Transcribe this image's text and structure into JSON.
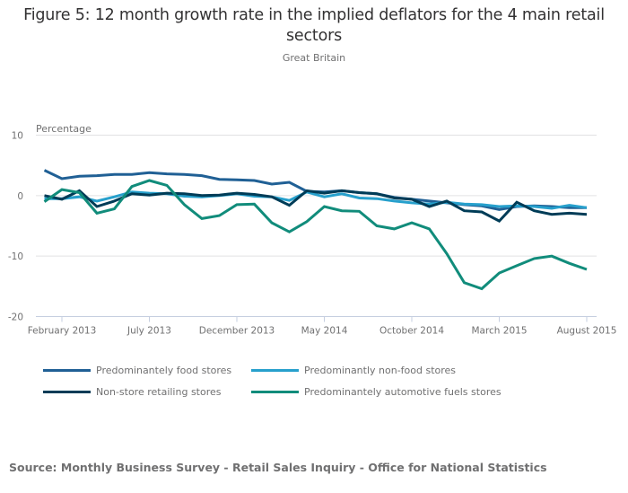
{
  "chart_data": {
    "type": "line",
    "title": "Figure 5: 12 month growth rate in the implied deflators for the 4 main retail sectors",
    "subtitle": "Great Britain",
    "ylabel": "Percentage",
    "xlabel": "",
    "ylim": [
      -20,
      10
    ],
    "yticks": [
      10,
      0,
      -10,
      -20
    ],
    "grid": true,
    "legend_position": "bottom",
    "x": [
      "Jan 2013",
      "Feb 2013",
      "Mar 2013",
      "Apr 2013",
      "May 2013",
      "Jun 2013",
      "Jul 2013",
      "Aug 2013",
      "Sep 2013",
      "Oct 2013",
      "Nov 2013",
      "Dec 2013",
      "Jan 2014",
      "Feb 2014",
      "Mar 2014",
      "Apr 2014",
      "May 2014",
      "Jun 2014",
      "Jul 2014",
      "Aug 2014",
      "Sep 2014",
      "Oct 2014",
      "Nov 2014",
      "Dec 2014",
      "Jan 2015",
      "Feb 2015",
      "Mar 2015",
      "Apr 2015",
      "May 2015",
      "Jun 2015",
      "Jul 2015",
      "Aug 2015"
    ],
    "xtick_labels": [
      {
        "index": 1,
        "label": "February 2013"
      },
      {
        "index": 6,
        "label": "July 2013"
      },
      {
        "index": 11,
        "label": "December 2013"
      },
      {
        "index": 16,
        "label": "May 2014"
      },
      {
        "index": 21,
        "label": "October 2014"
      },
      {
        "index": 26,
        "label": "March 2015"
      },
      {
        "index": 31,
        "label": "August 2015"
      }
    ],
    "series": [
      {
        "name": "Predominantely food stores",
        "color": "#206095",
        "values": [
          4.2,
          2.8,
          3.2,
          3.3,
          3.5,
          3.5,
          3.8,
          3.6,
          3.5,
          3.3,
          2.7,
          2.6,
          2.5,
          1.9,
          2.2,
          0.7,
          0.6,
          0.8,
          0.5,
          0.3,
          -0.3,
          -0.6,
          -0.9,
          -1.2,
          -1.5,
          -1.7,
          -2.3,
          -1.8,
          -1.7,
          -1.8,
          -2.0,
          -2.0
        ]
      },
      {
        "name": "Predominantly non-food stores",
        "color": "#27a0cc",
        "values": [
          -0.5,
          -0.5,
          -0.2,
          -0.9,
          -0.2,
          0.6,
          0.4,
          0.3,
          -0.1,
          -0.2,
          0.0,
          0.3,
          -0.1,
          -0.2,
          -0.8,
          0.6,
          -0.2,
          0.3,
          -0.4,
          -0.5,
          -0.9,
          -1.2,
          -1.4,
          -1.1,
          -1.4,
          -1.5,
          -1.8,
          -1.7,
          -1.8,
          -2.1,
          -1.6,
          -2.0
        ]
      },
      {
        "name": "Non-store retailing stores",
        "color": "#003c57",
        "values": [
          0.0,
          -0.6,
          0.8,
          -1.8,
          -0.9,
          0.3,
          0.1,
          0.4,
          0.3,
          0.0,
          0.1,
          0.4,
          0.2,
          -0.2,
          -1.6,
          0.8,
          0.4,
          0.8,
          0.5,
          0.3,
          -0.4,
          -0.6,
          -1.8,
          -0.9,
          -2.5,
          -2.7,
          -4.2,
          -1.1,
          -2.5,
          -3.1,
          -2.9,
          -3.1
        ]
      },
      {
        "name": "Predominantely automotive fuels stores",
        "color": "#118c7b",
        "values": [
          -1.0,
          1.0,
          0.5,
          -2.9,
          -2.2,
          1.5,
          2.5,
          1.7,
          -1.5,
          -3.8,
          -3.3,
          -1.5,
          -1.4,
          -4.5,
          -6.0,
          -4.3,
          -1.8,
          -2.5,
          -2.6,
          -5.0,
          -5.5,
          -4.5,
          -5.5,
          -9.6,
          -14.4,
          -15.4,
          -12.8,
          -11.6,
          -10.4,
          -10.0,
          -11.2,
          -12.2
        ]
      }
    ]
  },
  "source": "Source: Monthly Business Survey - Retail Sales Inquiry - Office for National Statistics"
}
